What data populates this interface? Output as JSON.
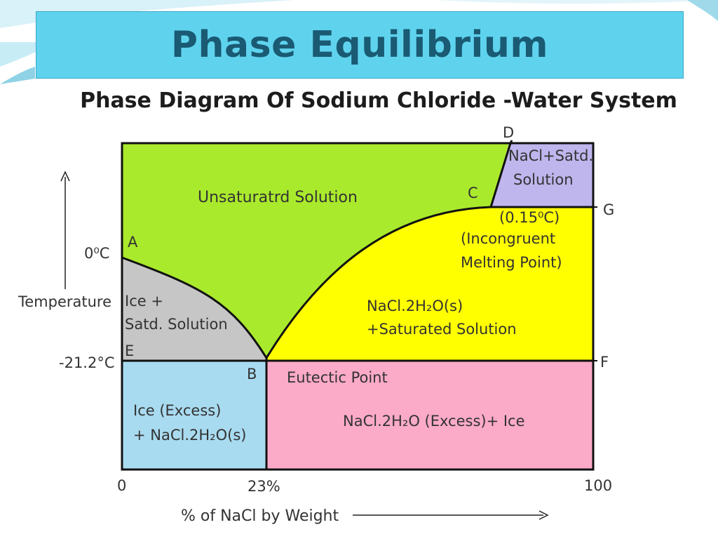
{
  "title": "Phase Equilibrium",
  "subtitle": "Phase Diagram Of Sodium Chloride -Water System",
  "axes": {
    "y_label": "Temperature",
    "x_label": "% of NaCl by Weight",
    "y_ticks": [
      "0⁰C",
      "-21.2°C"
    ],
    "x_ticks": [
      "0",
      "23%",
      "100"
    ]
  },
  "points": {
    "A": "A",
    "B": "B",
    "C": "C",
    "D": "D",
    "E": "E",
    "F": "F",
    "G": "G"
  },
  "regions": {
    "unsaturated": "Unsaturatrd Solution",
    "ice_satd": [
      "Ice +",
      "Satd. Solution"
    ],
    "nacl_satd": [
      "NaCl+Satd.",
      "Solution"
    ],
    "dihydrate_sat": [
      "NaCl.2H₂O(s)",
      "+Saturated Solution"
    ],
    "ice_excess": [
      "Ice (Excess)",
      "+ NaCl.2H₂O(s)"
    ],
    "dihydrate_ice": "NaCl.2H₂O (Excess)+ Ice"
  },
  "annotations": {
    "incongruent": [
      "(0.15⁰C)",
      "(Incongruent",
      "Melting Point)"
    ],
    "eutectic": "Eutectic Point"
  },
  "colors": {
    "unsaturated": "#aaea2c",
    "ice_satd": "#c6c6c6",
    "nacl_satd": "#bfb6ee",
    "dihydrate_sat": "#ffff00",
    "ice_excess": "#a9dbf0",
    "dihydrate_ice": "#fbaac8",
    "title_bar": "#5fd3ee"
  }
}
